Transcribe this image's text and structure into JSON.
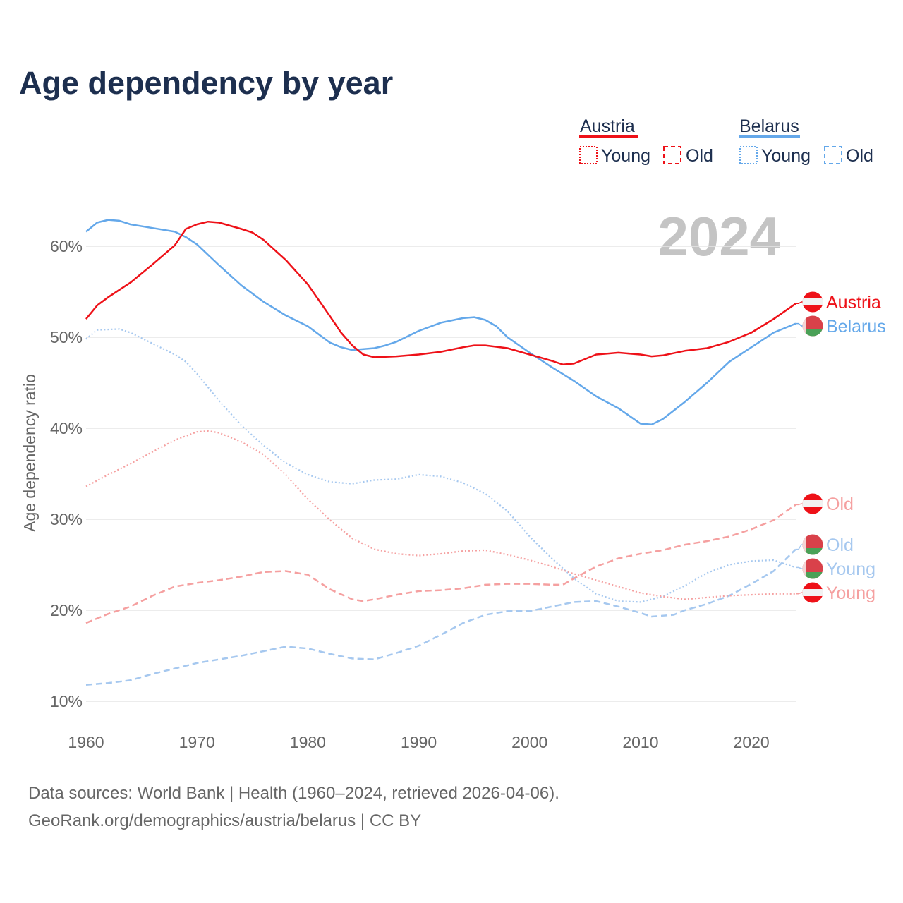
{
  "title": "Age dependency by year",
  "year_watermark": "2024",
  "legend": {
    "groups": [
      {
        "name": "Austria",
        "color": "#ee1118",
        "items": [
          "Young",
          "Old"
        ]
      },
      {
        "name": "Belarus",
        "color": "#64a8ea",
        "items": [
          "Young",
          "Old"
        ]
      }
    ]
  },
  "footer": {
    "line1": "Data sources: World Bank | Health (1960–2024, retrieved 2026-04-06).",
    "line2": "GeoRank.org/demographics/austria/belarus | CC BY"
  },
  "chart_data": {
    "type": "line",
    "title": "Age dependency by year",
    "xlabel": "",
    "ylabel": "Age dependency ratio",
    "xlim": [
      1960,
      2024
    ],
    "ylim": [
      10,
      63
    ],
    "xticks": [
      "1960",
      "1970",
      "1980",
      "1990",
      "2000",
      "2010",
      "2020"
    ],
    "yticks": [
      "10%",
      "20%",
      "30%",
      "40%",
      "50%",
      "60%"
    ],
    "grid": true,
    "series": [
      {
        "name": "Austria",
        "end_label": "Austria",
        "flag": "austria",
        "color": "#ee1118",
        "style": "solid",
        "x": [
          1960,
          1961,
          1962,
          1964,
          1966,
          1968,
          1969,
          1970,
          1971,
          1972,
          1974,
          1975,
          1976,
          1978,
          1980,
          1982,
          1983,
          1984,
          1985,
          1986,
          1988,
          1990,
          1992,
          1994,
          1995,
          1996,
          1998,
          2000,
          2002,
          2003,
          2004,
          2005,
          2006,
          2007,
          2008,
          2010,
          2011,
          2012,
          2014,
          2016,
          2018,
          2020,
          2022,
          2024
        ],
        "y": [
          52.0,
          53.5,
          54.4,
          56.0,
          58.0,
          60.1,
          61.9,
          62.4,
          62.7,
          62.6,
          61.9,
          61.5,
          60.7,
          58.5,
          55.8,
          52.3,
          50.5,
          49.1,
          48.1,
          47.8,
          47.9,
          48.1,
          48.4,
          48.9,
          49.1,
          49.1,
          48.8,
          48.1,
          47.4,
          47.0,
          47.1,
          47.6,
          48.1,
          48.2,
          48.3,
          48.1,
          47.9,
          48.0,
          48.5,
          48.8,
          49.5,
          50.5,
          52.0,
          53.7
        ]
      },
      {
        "name": "Belarus",
        "end_label": "Belarus",
        "flag": "belarus",
        "color": "#64a8ea",
        "style": "solid",
        "x": [
          1960,
          1961,
          1962,
          1963,
          1964,
          1966,
          1968,
          1969,
          1970,
          1972,
          1974,
          1976,
          1978,
          1980,
          1982,
          1983,
          1984,
          1986,
          1987,
          1988,
          1990,
          1992,
          1994,
          1995,
          1996,
          1997,
          1998,
          2000,
          2002,
          2004,
          2006,
          2008,
          2010,
          2011,
          2012,
          2014,
          2016,
          2018,
          2020,
          2022,
          2024
        ],
        "y": [
          61.6,
          62.6,
          62.9,
          62.8,
          62.4,
          62.0,
          61.6,
          61.0,
          60.2,
          57.9,
          55.7,
          53.9,
          52.4,
          51.2,
          49.4,
          48.9,
          48.6,
          48.8,
          49.1,
          49.5,
          50.7,
          51.6,
          52.1,
          52.2,
          51.9,
          51.2,
          50.0,
          48.3,
          46.7,
          45.2,
          43.5,
          42.2,
          40.5,
          40.4,
          41.0,
          42.9,
          45.0,
          47.3,
          48.9,
          50.5,
          51.5
        ]
      },
      {
        "name": "Austria Young",
        "end_label": "Young",
        "flag": "austria",
        "color": "#f5a0a0",
        "style": "dotted",
        "x": [
          1960,
          1962,
          1964,
          1966,
          1968,
          1970,
          1971,
          1972,
          1974,
          1976,
          1978,
          1980,
          1982,
          1984,
          1986,
          1988,
          1990,
          1992,
          1994,
          1996,
          1998,
          2000,
          2002,
          2004,
          2006,
          2008,
          2010,
          2012,
          2014,
          2016,
          2018,
          2020,
          2022,
          2024
        ],
        "y": [
          33.6,
          34.9,
          36.1,
          37.4,
          38.7,
          39.6,
          39.7,
          39.5,
          38.5,
          37.1,
          34.9,
          32.2,
          29.9,
          27.9,
          26.7,
          26.2,
          26.0,
          26.2,
          26.5,
          26.6,
          26.1,
          25.5,
          24.8,
          24.0,
          23.3,
          22.6,
          21.9,
          21.5,
          21.2,
          21.4,
          21.6,
          21.7,
          21.8,
          21.8
        ]
      },
      {
        "name": "Austria Old",
        "end_label": "Old",
        "flag": "austria",
        "color": "#f5a0a0",
        "style": "dashed",
        "x": [
          1960,
          1962,
          1964,
          1966,
          1968,
          1970,
          1972,
          1974,
          1976,
          1978,
          1980,
          1982,
          1984,
          1985,
          1986,
          1988,
          1990,
          1992,
          1994,
          1996,
          1998,
          2000,
          2002,
          2003,
          2004,
          2006,
          2008,
          2010,
          2012,
          2014,
          2016,
          2018,
          2020,
          2022,
          2024
        ],
        "y": [
          18.6,
          19.6,
          20.4,
          21.6,
          22.6,
          23.0,
          23.3,
          23.7,
          24.2,
          24.3,
          23.9,
          22.3,
          21.2,
          21.0,
          21.2,
          21.7,
          22.1,
          22.2,
          22.4,
          22.8,
          22.9,
          22.9,
          22.8,
          22.8,
          23.5,
          24.8,
          25.7,
          26.2,
          26.6,
          27.2,
          27.6,
          28.1,
          28.9,
          29.9,
          31.6
        ]
      },
      {
        "name": "Belarus Young",
        "end_label": "Young",
        "flag": "belarus",
        "color": "#a6c8ef",
        "style": "dotted",
        "x": [
          1960,
          1961,
          1963,
          1964,
          1966,
          1968,
          1969,
          1970,
          1972,
          1974,
          1976,
          1978,
          1980,
          1982,
          1984,
          1986,
          1988,
          1990,
          1992,
          1994,
          1996,
          1998,
          2000,
          2002,
          2004,
          2006,
          2008,
          2010,
          2012,
          2014,
          2016,
          2018,
          2020,
          2022,
          2024
        ],
        "y": [
          49.8,
          50.8,
          50.9,
          50.5,
          49.3,
          48.1,
          47.3,
          46.0,
          43.0,
          40.3,
          38.1,
          36.2,
          34.9,
          34.1,
          33.9,
          34.3,
          34.4,
          34.9,
          34.7,
          34.0,
          32.8,
          30.9,
          28.1,
          25.7,
          23.5,
          21.8,
          21.0,
          20.9,
          21.5,
          22.7,
          24.1,
          25.0,
          25.4,
          25.5,
          24.7
        ]
      },
      {
        "name": "Belarus Old",
        "end_label": "Old",
        "flag": "belarus",
        "color": "#a6c8ef",
        "style": "dashed",
        "x": [
          1960,
          1962,
          1964,
          1966,
          1968,
          1970,
          1972,
          1974,
          1976,
          1978,
          1980,
          1982,
          1984,
          1986,
          1988,
          1990,
          1992,
          1994,
          1996,
          1998,
          2000,
          2002,
          2004,
          2006,
          2008,
          2010,
          2011,
          2013,
          2014,
          2016,
          2018,
          2020,
          2022,
          2024
        ],
        "y": [
          11.8,
          12.0,
          12.3,
          13.0,
          13.6,
          14.2,
          14.6,
          15.0,
          15.5,
          16.0,
          15.8,
          15.2,
          14.7,
          14.6,
          15.3,
          16.1,
          17.3,
          18.6,
          19.5,
          19.9,
          19.9,
          20.4,
          20.9,
          21.0,
          20.4,
          19.7,
          19.3,
          19.5,
          20.0,
          20.7,
          21.6,
          22.9,
          24.3,
          26.7
        ]
      }
    ]
  }
}
